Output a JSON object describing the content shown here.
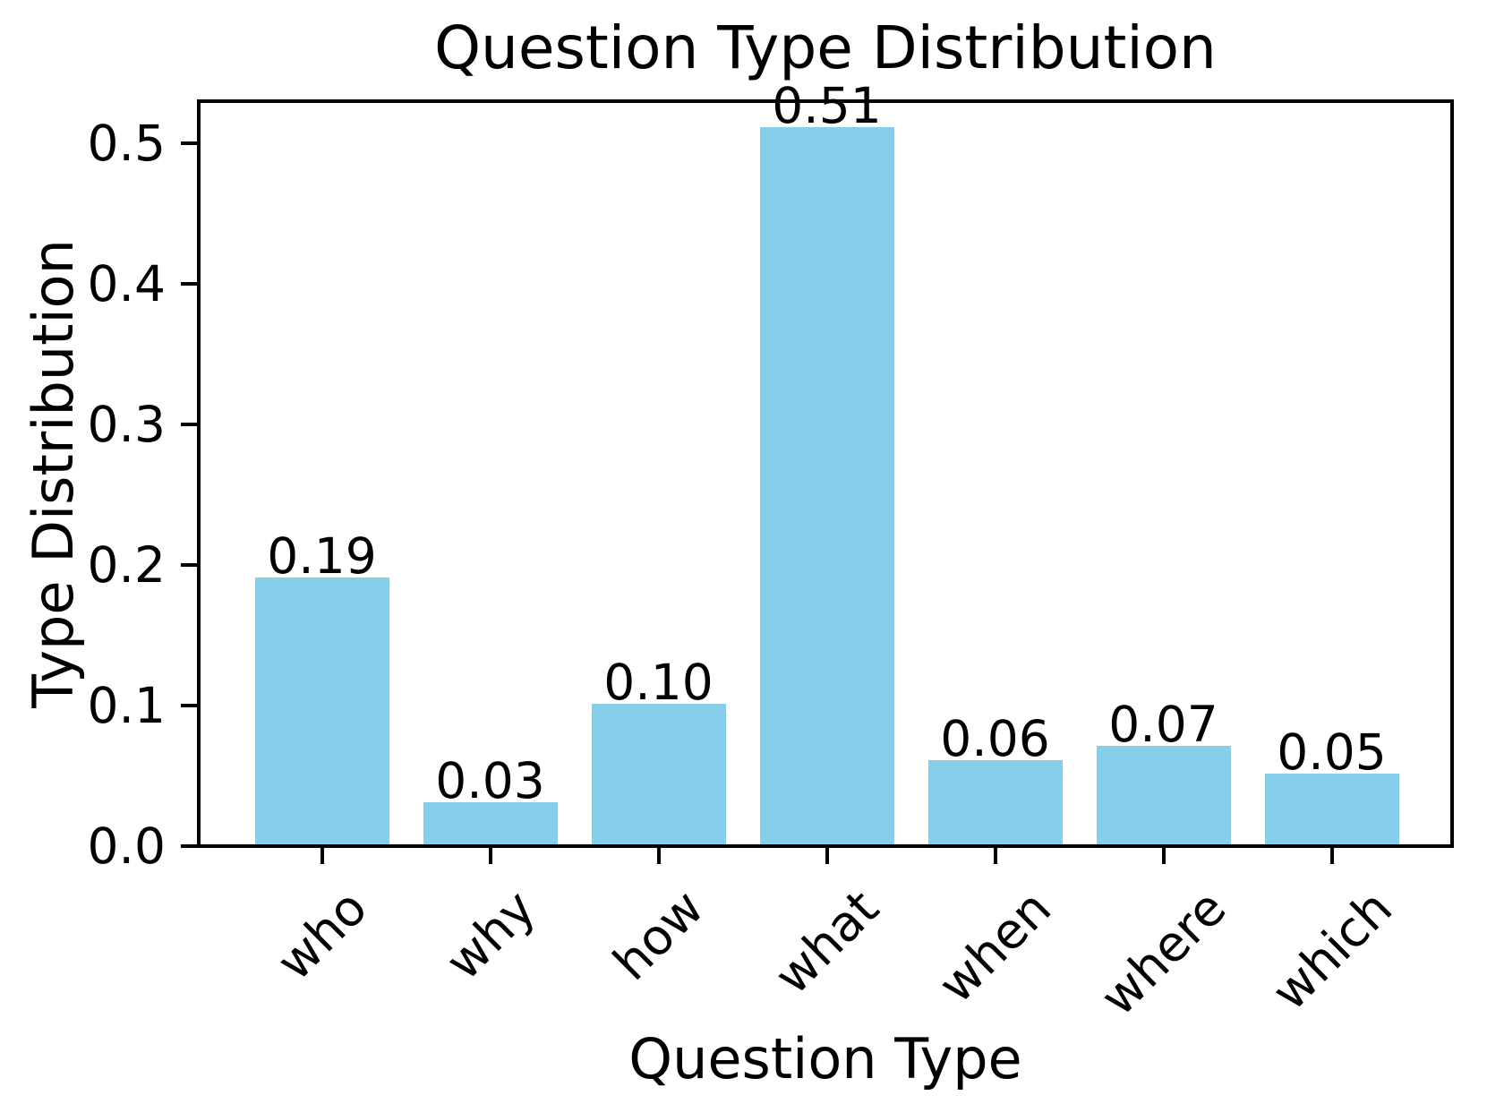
{
  "chart_data": {
    "type": "bar",
    "title": "Question Type Distribution",
    "xlabel": "Question Type",
    "ylabel": "Type Distribution",
    "categories": [
      "who",
      "why",
      "how",
      "what",
      "when",
      "where",
      "which"
    ],
    "values": [
      0.19,
      0.03,
      0.1,
      0.51,
      0.06,
      0.07,
      0.05
    ],
    "bar_labels": [
      "0.19",
      "0.03",
      "0.10",
      "0.51",
      "0.06",
      "0.07",
      "0.05"
    ],
    "ytick_labels": [
      "0.0",
      "0.1",
      "0.2",
      "0.3",
      "0.4",
      "0.5"
    ],
    "ytick_values": [
      0.0,
      0.1,
      0.2,
      0.3,
      0.4,
      0.5
    ],
    "ylim": [
      0.0,
      0.53
    ],
    "xtick_rotation_deg": 45,
    "grid": false,
    "legend": null,
    "bar_color": "#87ceeb",
    "text_color": "#000000",
    "spine_color": "#000000",
    "background_color": "#ffffff"
  }
}
